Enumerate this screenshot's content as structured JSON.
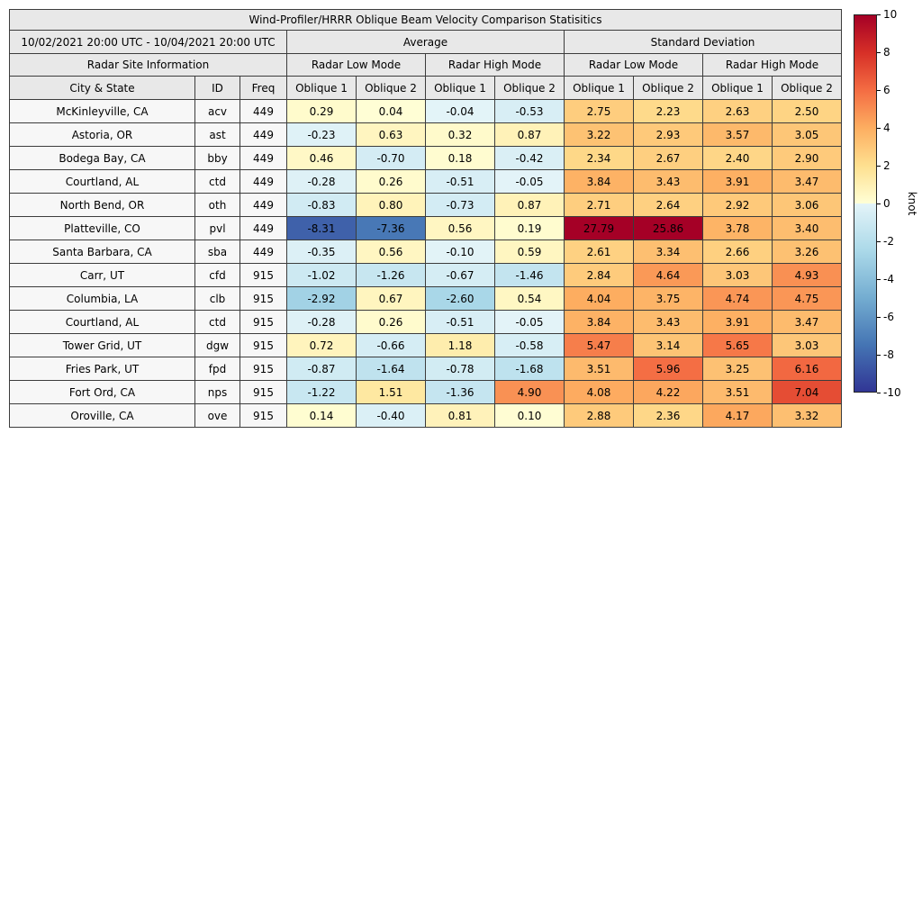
{
  "chart_data": {
    "type": "table",
    "title": "Wind-Profiler/HRRR Oblique Beam Velocity Comparison Statisitics",
    "date_range": "10/02/2021 20:00 UTC - 10/04/2021 20:00 UTC",
    "group_headers": [
      "Average",
      "Standard Deviation"
    ],
    "site_info_header": "Radar Site Information",
    "mode_headers": [
      "Radar Low Mode",
      "Radar High Mode",
      "Radar Low Mode",
      "Radar High Mode"
    ],
    "site_columns": [
      "City & State",
      "ID",
      "Freq"
    ],
    "oblique_headers": [
      "Oblique 1",
      "Oblique 2"
    ],
    "value_columns": [
      "Average Low Oblique 1",
      "Average Low Oblique 2",
      "Average High Oblique 1",
      "Average High Oblique 2",
      "StdDev Low Oblique 1",
      "StdDev Low Oblique 2",
      "StdDev High Oblique 1",
      "StdDev High Oblique 2"
    ],
    "rows": [
      {
        "city": "McKinleyville, CA",
        "id": "acv",
        "freq": 449,
        "values": [
          0.29,
          0.04,
          -0.04,
          -0.53,
          2.75,
          2.23,
          2.63,
          2.5
        ]
      },
      {
        "city": "Astoria, OR",
        "id": "ast",
        "freq": 449,
        "values": [
          -0.23,
          0.63,
          0.32,
          0.87,
          3.22,
          2.93,
          3.57,
          3.05
        ]
      },
      {
        "city": "Bodega Bay, CA",
        "id": "bby",
        "freq": 449,
        "values": [
          0.46,
          -0.7,
          0.18,
          -0.42,
          2.34,
          2.67,
          2.4,
          2.9
        ]
      },
      {
        "city": "Courtland, AL",
        "id": "ctd",
        "freq": 449,
        "values": [
          -0.28,
          0.26,
          -0.51,
          -0.05,
          3.84,
          3.43,
          3.91,
          3.47
        ]
      },
      {
        "city": "North Bend, OR",
        "id": "oth",
        "freq": 449,
        "values": [
          -0.83,
          0.8,
          -0.73,
          0.87,
          2.71,
          2.64,
          2.92,
          3.06
        ]
      },
      {
        "city": "Platteville, CO",
        "id": "pvl",
        "freq": 449,
        "values": [
          -8.31,
          -7.36,
          0.56,
          0.19,
          27.79,
          25.86,
          3.78,
          3.4
        ]
      },
      {
        "city": "Santa Barbara, CA",
        "id": "sba",
        "freq": 449,
        "values": [
          -0.35,
          0.56,
          -0.1,
          0.59,
          2.61,
          3.34,
          2.66,
          3.26
        ]
      },
      {
        "city": "Carr, UT",
        "id": "cfd",
        "freq": 915,
        "values": [
          -1.02,
          -1.26,
          -0.67,
          -1.46,
          2.84,
          4.64,
          3.03,
          4.93
        ]
      },
      {
        "city": "Columbia, LA",
        "id": "clb",
        "freq": 915,
        "values": [
          -2.92,
          0.67,
          -2.6,
          0.54,
          4.04,
          3.75,
          4.74,
          4.75
        ]
      },
      {
        "city": "Courtland, AL",
        "id": "ctd",
        "freq": 915,
        "values": [
          -0.28,
          0.26,
          -0.51,
          -0.05,
          3.84,
          3.43,
          3.91,
          3.47
        ]
      },
      {
        "city": "Tower Grid, UT",
        "id": "dgw",
        "freq": 915,
        "values": [
          0.72,
          -0.66,
          1.18,
          -0.58,
          5.47,
          3.14,
          5.65,
          3.03
        ]
      },
      {
        "city": "Fries Park, UT",
        "id": "fpd",
        "freq": 915,
        "values": [
          -0.87,
          -1.64,
          -0.78,
          -1.68,
          3.51,
          5.96,
          3.25,
          6.16
        ]
      },
      {
        "city": "Fort Ord, CA",
        "id": "nps",
        "freq": 915,
        "values": [
          -1.22,
          1.51,
          -1.36,
          4.9,
          4.08,
          4.22,
          3.51,
          7.04
        ]
      },
      {
        "city": "Oroville, CA",
        "id": "ove",
        "freq": 915,
        "values": [
          0.14,
          -0.4,
          0.81,
          0.1,
          2.88,
          2.36,
          4.17,
          3.32
        ]
      }
    ],
    "colorbar": {
      "label": "knot",
      "min": -10,
      "max": 10,
      "ticks": [
        10,
        8,
        6,
        4,
        2,
        0,
        -2,
        -4,
        -6,
        -8,
        -10
      ]
    },
    "colormap": {
      "negative": [
        {
          "v": -10,
          "c": "#313695"
        },
        {
          "v": -7.5,
          "c": "#4575b4"
        },
        {
          "v": -5,
          "c": "#74add1"
        },
        {
          "v": -2.5,
          "c": "#abd9e9"
        },
        {
          "v": 0,
          "c": "#e4f4f8"
        }
      ],
      "positive": [
        {
          "v": 0,
          "c": "#ffffd6"
        },
        {
          "v": 2,
          "c": "#fee090"
        },
        {
          "v": 4,
          "c": "#fdae61"
        },
        {
          "v": 6,
          "c": "#f46d43"
        },
        {
          "v": 8,
          "c": "#d73027"
        },
        {
          "v": 10,
          "c": "#a50026"
        }
      ]
    }
  }
}
